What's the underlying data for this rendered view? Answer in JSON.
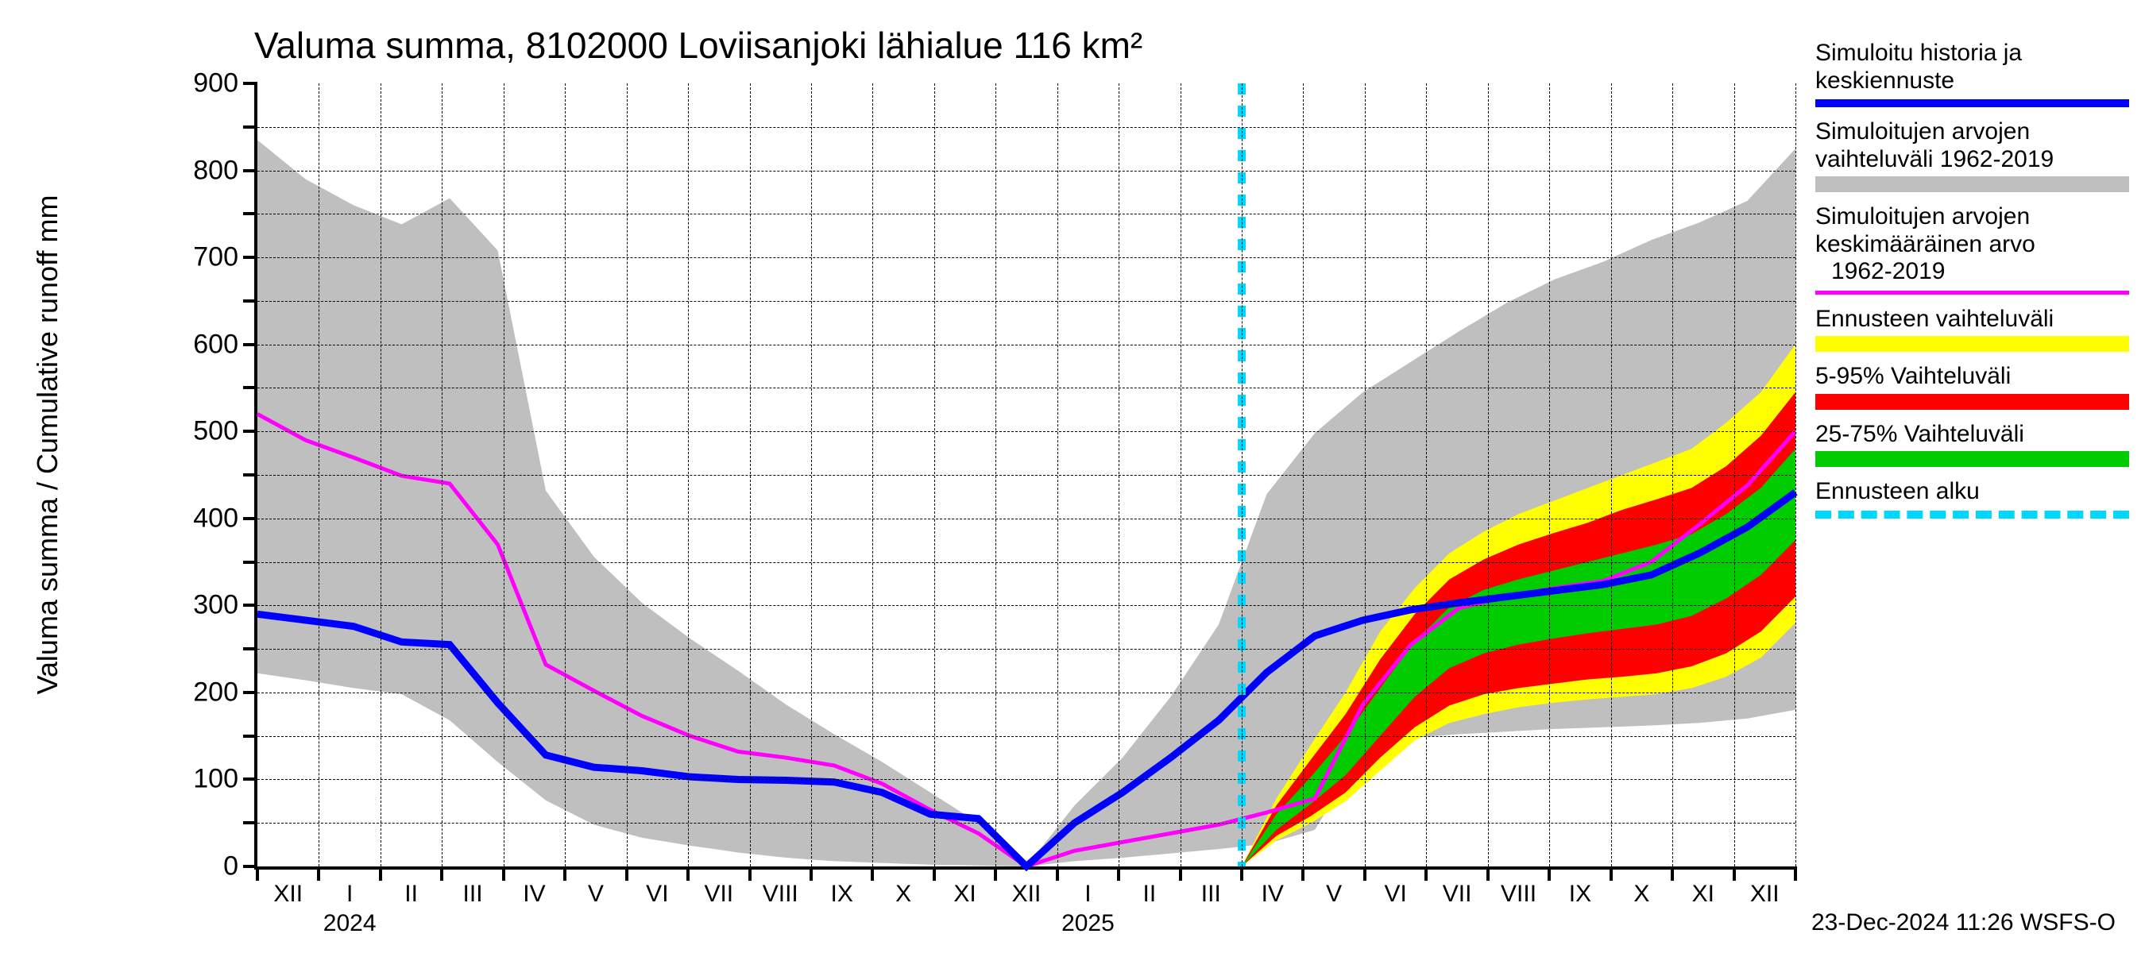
{
  "title": "Valuma summa, 8102000 Loviisanjoki lähialue 116 km²",
  "y_axis_label": "Valuma summa / Cumulative runoff    mm",
  "timestamp_footer": "23-Dec-2024 11:26 WSFS-O",
  "chart": {
    "type": "line-with-bands",
    "background_color": "#ffffff",
    "grid_color": "#000000",
    "grid_dash": "3,4",
    "ylim": [
      0,
      900
    ],
    "ytick_step": 50,
    "ytick_labels_step": 100,
    "x_months_labels": [
      "XII",
      "I",
      "II",
      "III",
      "IV",
      "V",
      "VI",
      "VII",
      "VIII",
      "IX",
      "X",
      "XI",
      "XII",
      "I",
      "II",
      "III",
      "IV",
      "V",
      "VI",
      "VII",
      "VIII",
      "IX",
      "X",
      "XI",
      "XII"
    ],
    "year_labels": [
      {
        "text": "2024",
        "at_month_index": 1.5
      },
      {
        "text": "2025",
        "at_month_index": 13.5
      }
    ],
    "grey_band": {
      "color": "#bfbfbf",
      "upper": [
        835,
        790,
        760,
        738,
        768,
        708,
        432,
        356,
        303,
        262,
        225,
        186,
        152,
        120,
        85,
        50,
        0,
        70,
        125,
        195,
        278,
        428,
        498,
        545,
        580,
        615,
        648,
        675,
        695,
        720,
        740,
        765,
        825
      ],
      "lower": [
        222,
        214,
        205,
        198,
        168,
        120,
        76,
        48,
        33,
        24,
        16,
        10,
        6,
        4,
        2,
        1,
        0,
        6,
        10,
        15,
        20,
        26,
        42,
        133,
        148,
        152,
        155,
        158,
        160,
        162,
        165,
        170,
        180
      ]
    },
    "yellow_band": {
      "color": "#ffff00",
      "start_index": 16,
      "upper": [
        0,
        78,
        140,
        200,
        270,
        320,
        360,
        385,
        405,
        420,
        435,
        450,
        465,
        480,
        510,
        545,
        600
      ],
      "lower": [
        0,
        30,
        50,
        75,
        110,
        145,
        165,
        175,
        183,
        188,
        192,
        195,
        198,
        205,
        218,
        240,
        280
      ]
    },
    "red_band": {
      "color": "#ff0000",
      "start_index": 16,
      "upper": [
        0,
        70,
        123,
        175,
        238,
        290,
        330,
        353,
        370,
        383,
        395,
        410,
        422,
        435,
        460,
        495,
        545
      ],
      "lower": [
        0,
        35,
        58,
        85,
        125,
        160,
        185,
        198,
        205,
        210,
        215,
        218,
        222,
        230,
        245,
        270,
        310
      ]
    },
    "green_band": {
      "color": "#00cc00",
      "start_index": 16,
      "upper": [
        0,
        60,
        103,
        150,
        205,
        258,
        298,
        318,
        330,
        340,
        350,
        360,
        370,
        382,
        405,
        435,
        480
      ],
      "lower": [
        0,
        42,
        72,
        105,
        150,
        195,
        228,
        245,
        255,
        262,
        268,
        273,
        278,
        288,
        308,
        335,
        375
      ]
    },
    "magenta_line": {
      "color": "#ff00ff",
      "width": 5,
      "values": [
        520,
        490,
        470,
        449,
        440,
        370,
        232,
        202,
        173,
        150,
        132,
        125,
        116,
        95,
        65,
        38,
        0,
        18,
        28,
        38,
        48,
        62,
        78,
        186,
        255,
        297,
        310,
        320,
        328,
        350,
        393,
        438,
        500
      ]
    },
    "blue_line": {
      "color": "#0000ff",
      "width": 9,
      "values": [
        290,
        283,
        276,
        258,
        255,
        188,
        128,
        114,
        110,
        103,
        100,
        99,
        97,
        85,
        60,
        55,
        0,
        50,
        85,
        125,
        168,
        223,
        265,
        283,
        295,
        303,
        310,
        317,
        324,
        335,
        360,
        390,
        430
      ]
    },
    "forecast_divider": {
      "index": 16,
      "color": "#00d7ff",
      "dash": "14,14",
      "width": 10
    }
  },
  "legend": [
    {
      "type": "line",
      "text_lines": [
        "Simuloitu historia ja",
        "keskiennuste"
      ],
      "color": "#0000ff",
      "thickness": 10
    },
    {
      "type": "swatch",
      "text_lines": [
        "Simuloitujen arvojen",
        "vaihteluväli 1962-2019"
      ],
      "color": "#bfbfbf",
      "thickness": 20
    },
    {
      "type": "line",
      "text_lines": [
        "Simuloitujen arvojen",
        "keskimääräinen arvo",
        "  1962-2019"
      ],
      "color": "#ff00ff",
      "thickness": 5
    },
    {
      "type": "swatch",
      "text_lines": [
        "Ennusteen vaihteluväli"
      ],
      "color": "#ffff00",
      "thickness": 20
    },
    {
      "type": "swatch",
      "text_lines": [
        "5-95% Vaihteluväli"
      ],
      "color": "#ff0000",
      "thickness": 20
    },
    {
      "type": "swatch",
      "text_lines": [
        "25-75% Vaihteluväli"
      ],
      "color": "#00cc00",
      "thickness": 20
    },
    {
      "type": "dash",
      "text_lines": [
        "Ennusteen alku"
      ],
      "color": "#00d7ff",
      "thickness": 10
    }
  ]
}
